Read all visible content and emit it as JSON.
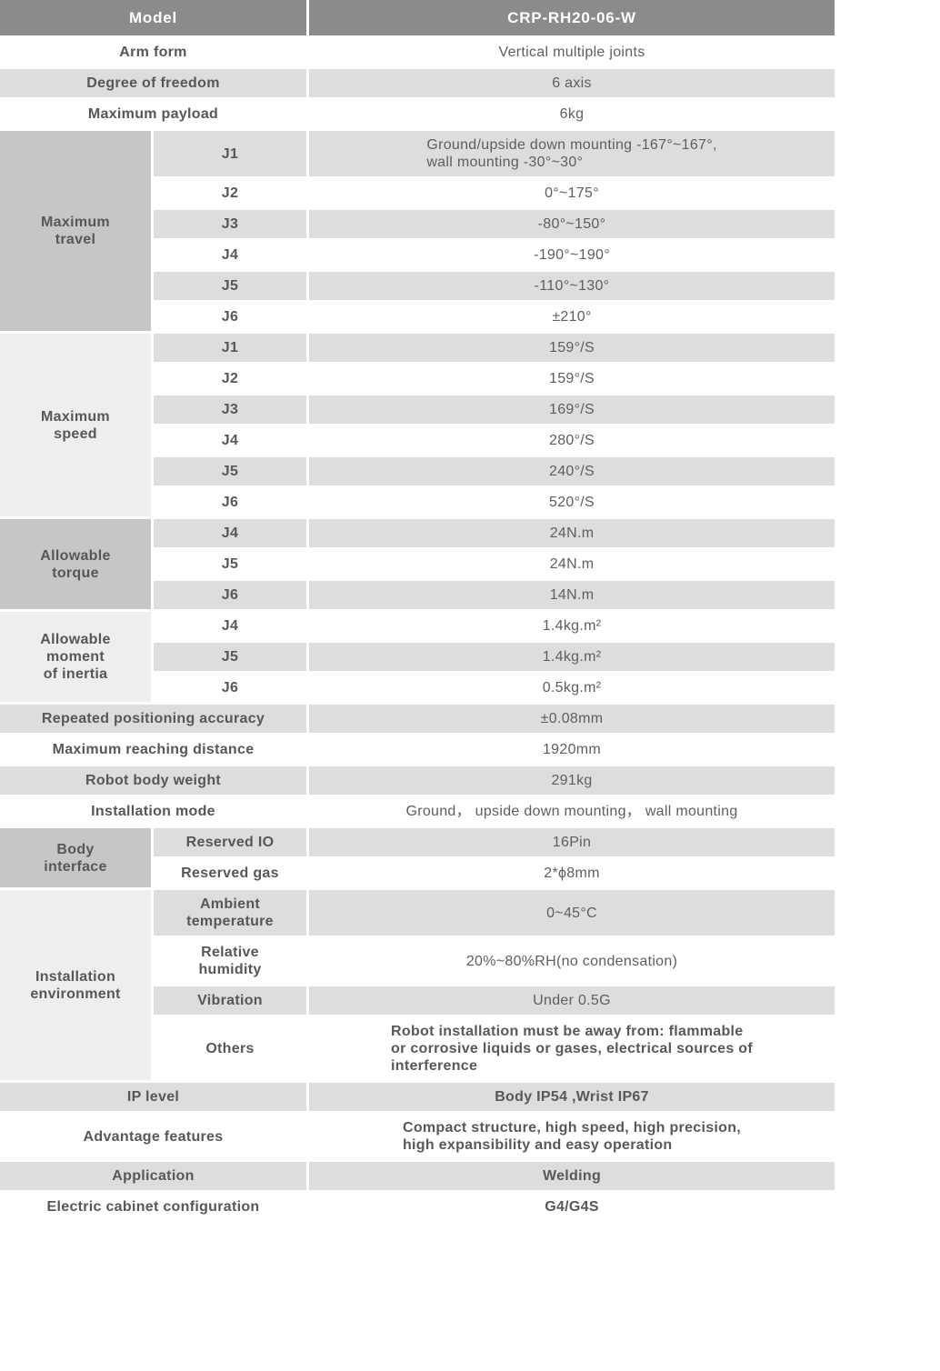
{
  "colors": {
    "header_bg": "#8b8b8b",
    "header_text": "#ffffff",
    "row_gray": "#dcdddd",
    "row_white": "#ffffff",
    "group_dark": "#c6c6c7",
    "group_light": "#eeeeef",
    "text": "#58595b",
    "separator": "#ffffff"
  },
  "table": {
    "rows": [
      {
        "kind": "header",
        "label": "Model",
        "value": "CRP-RH20-06-W",
        "shade": "header"
      },
      {
        "kind": "plain",
        "label": "Arm form",
        "value": "Vertical multiple joints",
        "shade": "white"
      },
      {
        "kind": "plain",
        "label": "Degree of freedom",
        "value": "6 axis",
        "shade": "gray"
      },
      {
        "kind": "plain",
        "label": "Maximum payload",
        "value": "6kg",
        "shade": "white"
      },
      {
        "kind": "grouped",
        "group": "Maximum\ntravel",
        "group_shade": "dark",
        "group_span": 6,
        "sub": "J1",
        "value": "Ground/upside down mounting -167°~167°,\nwall mounting -30°~30°",
        "shade": "gray",
        "left_block": true
      },
      {
        "kind": "grouped",
        "sub": "J2",
        "value": "0°~175°",
        "shade": "white"
      },
      {
        "kind": "grouped",
        "sub": "J3",
        "value": "-80°~150°",
        "shade": "gray"
      },
      {
        "kind": "grouped",
        "sub": "J4",
        "value": "-190°~190°",
        "shade": "white"
      },
      {
        "kind": "grouped",
        "sub": "J5",
        "value": "-110°~130°",
        "shade": "gray"
      },
      {
        "kind": "grouped",
        "sub": "J6",
        "value": "±210°",
        "shade": "white"
      },
      {
        "kind": "grouped",
        "group": "Maximum\nspeed",
        "group_shade": "light",
        "group_span": 6,
        "sub": "J1",
        "value": "159°/S",
        "shade": "gray"
      },
      {
        "kind": "grouped",
        "sub": "J2",
        "value": "159°/S",
        "shade": "white"
      },
      {
        "kind": "grouped",
        "sub": "J3",
        "value": "169°/S",
        "shade": "gray"
      },
      {
        "kind": "grouped",
        "sub": "J4",
        "value": "280°/S",
        "shade": "white"
      },
      {
        "kind": "grouped",
        "sub": "J5",
        "value": "240°/S",
        "shade": "gray"
      },
      {
        "kind": "grouped",
        "sub": "J6",
        "value": "520°/S",
        "shade": "white"
      },
      {
        "kind": "grouped",
        "group": "Allowable\ntorque",
        "group_shade": "dark",
        "group_span": 3,
        "sub": "J4",
        "value": "24N.m",
        "shade": "gray"
      },
      {
        "kind": "grouped",
        "sub": "J5",
        "value": "24N.m",
        "shade": "white"
      },
      {
        "kind": "grouped",
        "sub": "J6",
        "value": "14N.m",
        "shade": "gray"
      },
      {
        "kind": "grouped",
        "group": "Allowable\nmoment\nof inertia",
        "group_shade": "light",
        "group_span": 3,
        "sub": "J4",
        "value": "1.4kg.m²",
        "shade": "white"
      },
      {
        "kind": "grouped",
        "sub": "J5",
        "value": "1.4kg.m²",
        "shade": "gray"
      },
      {
        "kind": "grouped",
        "sub": "J6",
        "value": "0.5kg.m²",
        "shade": "white"
      },
      {
        "kind": "plain",
        "label": "Repeated positioning accuracy",
        "value": "±0.08mm",
        "shade": "gray"
      },
      {
        "kind": "plain",
        "label": "Maximum reaching distance",
        "value": "1920mm",
        "shade": "white"
      },
      {
        "kind": "plain",
        "label": "Robot body weight",
        "value": "291kg",
        "shade": "gray"
      },
      {
        "kind": "plain",
        "label": "Installation mode",
        "value": "Ground， upside down mounting， wall mounting",
        "shade": "white"
      },
      {
        "kind": "grouped",
        "group": "Body\ninterface",
        "group_shade": "dark",
        "group_span": 2,
        "sub": "Reserved IO",
        "value": "16Pin",
        "shade": "gray"
      },
      {
        "kind": "grouped",
        "sub": "Reserved gas",
        "value": "2*ϕ8mm",
        "shade": "white"
      },
      {
        "kind": "grouped",
        "group": "Installation\nenvironment",
        "group_shade": "light",
        "group_span": 4,
        "sub": "Ambient\ntemperature",
        "value": "0~45°C",
        "shade": "gray"
      },
      {
        "kind": "grouped",
        "sub": "Relative\nhumidity",
        "value": "20%~80%RH(no condensation)",
        "shade": "white"
      },
      {
        "kind": "grouped",
        "sub": "Vibration",
        "value": "Under 0.5G",
        "shade": "gray"
      },
      {
        "kind": "grouped",
        "sub": "Others",
        "value": "Robot installation must be away from: flammable\nor corrosive liquids or gases, electrical sources of\ninterference",
        "shade": "white",
        "left_block": true,
        "strong": true
      },
      {
        "kind": "plain",
        "label": "IP level",
        "value": "Body IP54 ,Wrist IP67",
        "shade": "gray",
        "strong": true
      },
      {
        "kind": "plain",
        "label": "Advantage features",
        "value": "Compact structure, high speed, high precision,\nhigh expansibility and easy operation",
        "shade": "white",
        "left_block": true,
        "strong": true
      },
      {
        "kind": "plain",
        "label": "Application",
        "value": "Welding",
        "shade": "gray",
        "strong": true
      },
      {
        "kind": "plain",
        "label": "Electric cabinet configuration",
        "value": "G4/G4S",
        "shade": "white",
        "strong": true
      }
    ]
  }
}
